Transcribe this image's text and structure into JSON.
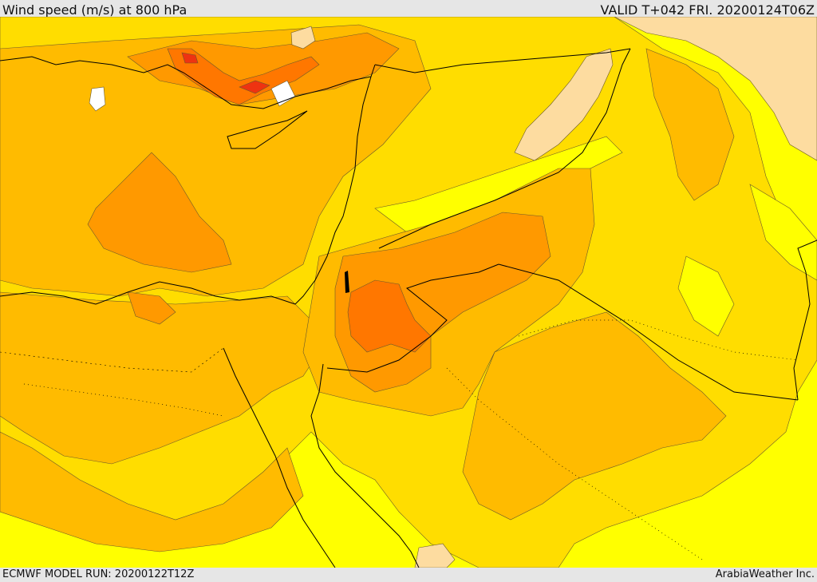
{
  "header": {
    "title": "Wind speed (m/s) at 800 hPa",
    "valid": "VALID T+042 FRI. 20200124T06Z"
  },
  "footer": {
    "model_run": "ECMWF MODEL RUN: 20200122T12Z",
    "credit": "ArabiaWeather Inc."
  },
  "colors": {
    "background_yellow": "#ffff00",
    "band_1": "#ffdd00",
    "band_2": "#ffbb00",
    "band_3": "#ff9900",
    "band_4": "#ff7700",
    "band_5": "#ee3311",
    "calm_peach": "#fddca0",
    "calm_white": "#ffffff",
    "coastline": "#000000",
    "contour": "#6b5a2a"
  }
}
